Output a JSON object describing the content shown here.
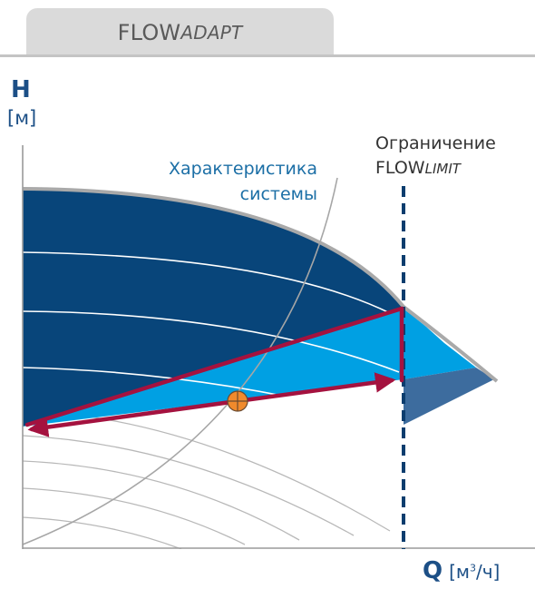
{
  "tab": {
    "title_main": "FLOW",
    "title_italic": "ADAPT"
  },
  "axes": {
    "y_letter": "H",
    "y_unit": "[м]",
    "x_letter": "Q",
    "x_unit_prefix": "[м",
    "x_unit_sup": "3",
    "x_unit_suffix": "/ч]"
  },
  "labels": {
    "system_curve_line1": "Характеристика",
    "system_curve_line2": "системы",
    "limit_line1": "Ограничение",
    "limit_line2_main": "FLOW",
    "limit_line2_italic": "LIMIT"
  },
  "colors": {
    "dark_region": "#08457a",
    "light_region": "#00a0e3",
    "steel_region": "#3d6c9e",
    "arrow": "#a4123f",
    "limit_line": "#0b3d6e",
    "operating_point": "#f08a2c"
  },
  "icons": {
    "operating_point": "crosshair-circle-icon"
  }
}
